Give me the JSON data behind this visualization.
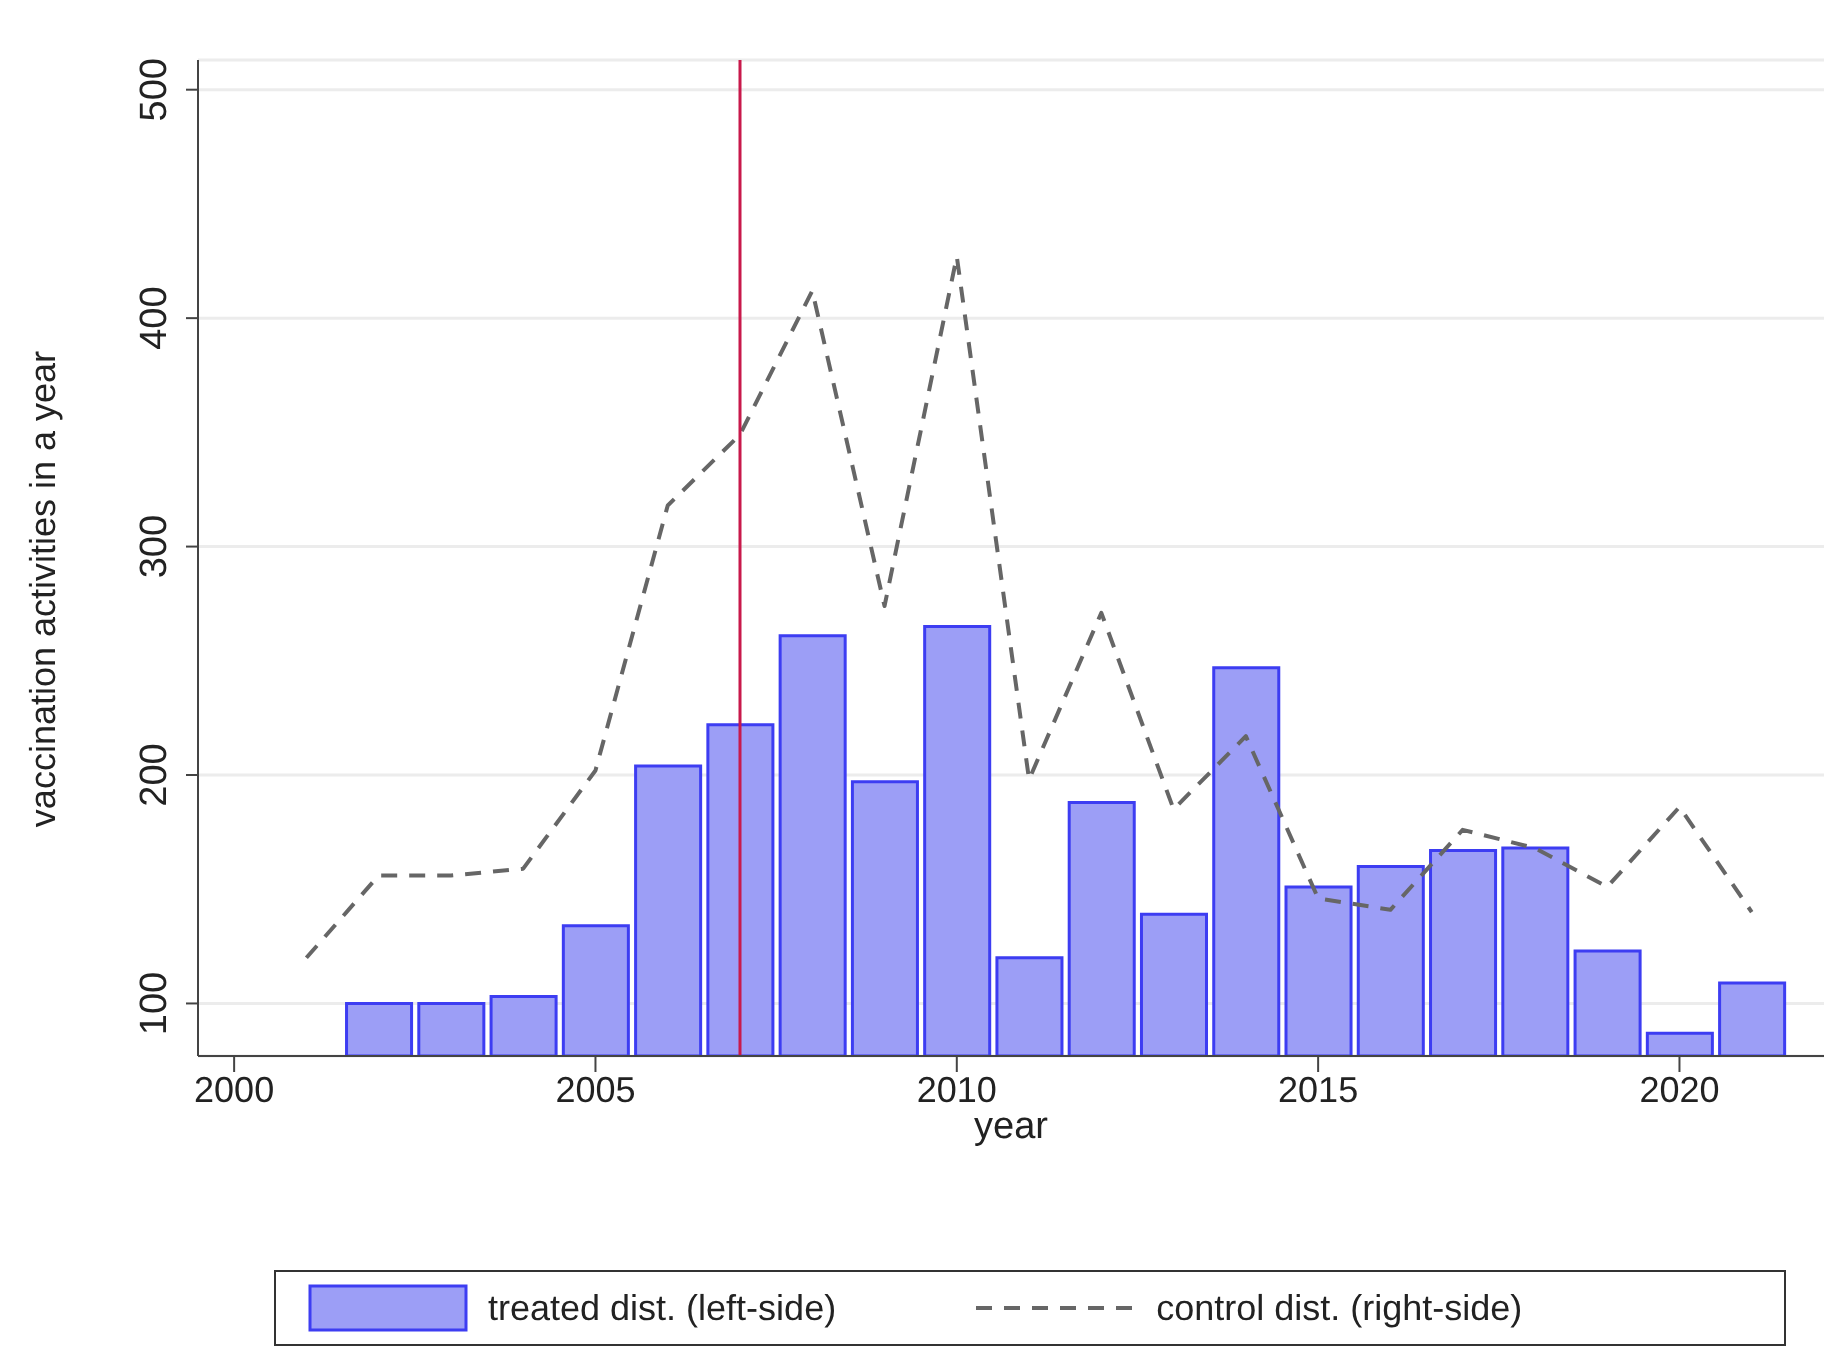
{
  "chart_data": {
    "type": "bar",
    "xlabel": "year",
    "ylabel": "vaccination activities in a year",
    "x": [
      2002,
      2003,
      2004,
      2005,
      2006,
      2007,
      2008,
      2009,
      2010,
      2011,
      2012,
      2013,
      2014,
      2015,
      2016,
      2017,
      2018,
      2019,
      2020,
      2021
    ],
    "series": [
      {
        "name": "treated dist. (left-side)",
        "color": "#9c9ef6",
        "values": [
          100,
          100,
          103,
          134,
          204,
          222,
          261,
          197,
          265,
          120,
          188,
          139,
          247,
          151,
          160,
          167,
          168,
          123,
          87,
          109
        ]
      },
      {
        "name": "control dist. (right-side)",
        "type": "line",
        "color": "#666666",
        "line_style": "dashed",
        "x": [
          2001,
          2002,
          2003,
          2004,
          2005,
          2006,
          2007,
          2008,
          2009,
          2010,
          2011,
          2012,
          2013,
          2014,
          2015,
          2016,
          2017,
          2018,
          2019,
          2020,
          2021
        ],
        "values": [
          120,
          156,
          156,
          159,
          202,
          318,
          349,
          412,
          274,
          427,
          198,
          271,
          185,
          217,
          146,
          141,
          176,
          168,
          151,
          186,
          140
        ]
      }
    ],
    "xlim": [
      1999.5,
      2022
    ],
    "xticks": [
      2000,
      2005,
      2010,
      2015,
      2020
    ],
    "ylim": [
      77,
      513
    ],
    "yticks": [
      100,
      200,
      300,
      400,
      500
    ],
    "ref_lines": [
      {
        "axis": "x",
        "value": 2007,
        "color": "#c8194b"
      }
    ],
    "grid": "y",
    "legend": "bottom",
    "marker": "none"
  }
}
